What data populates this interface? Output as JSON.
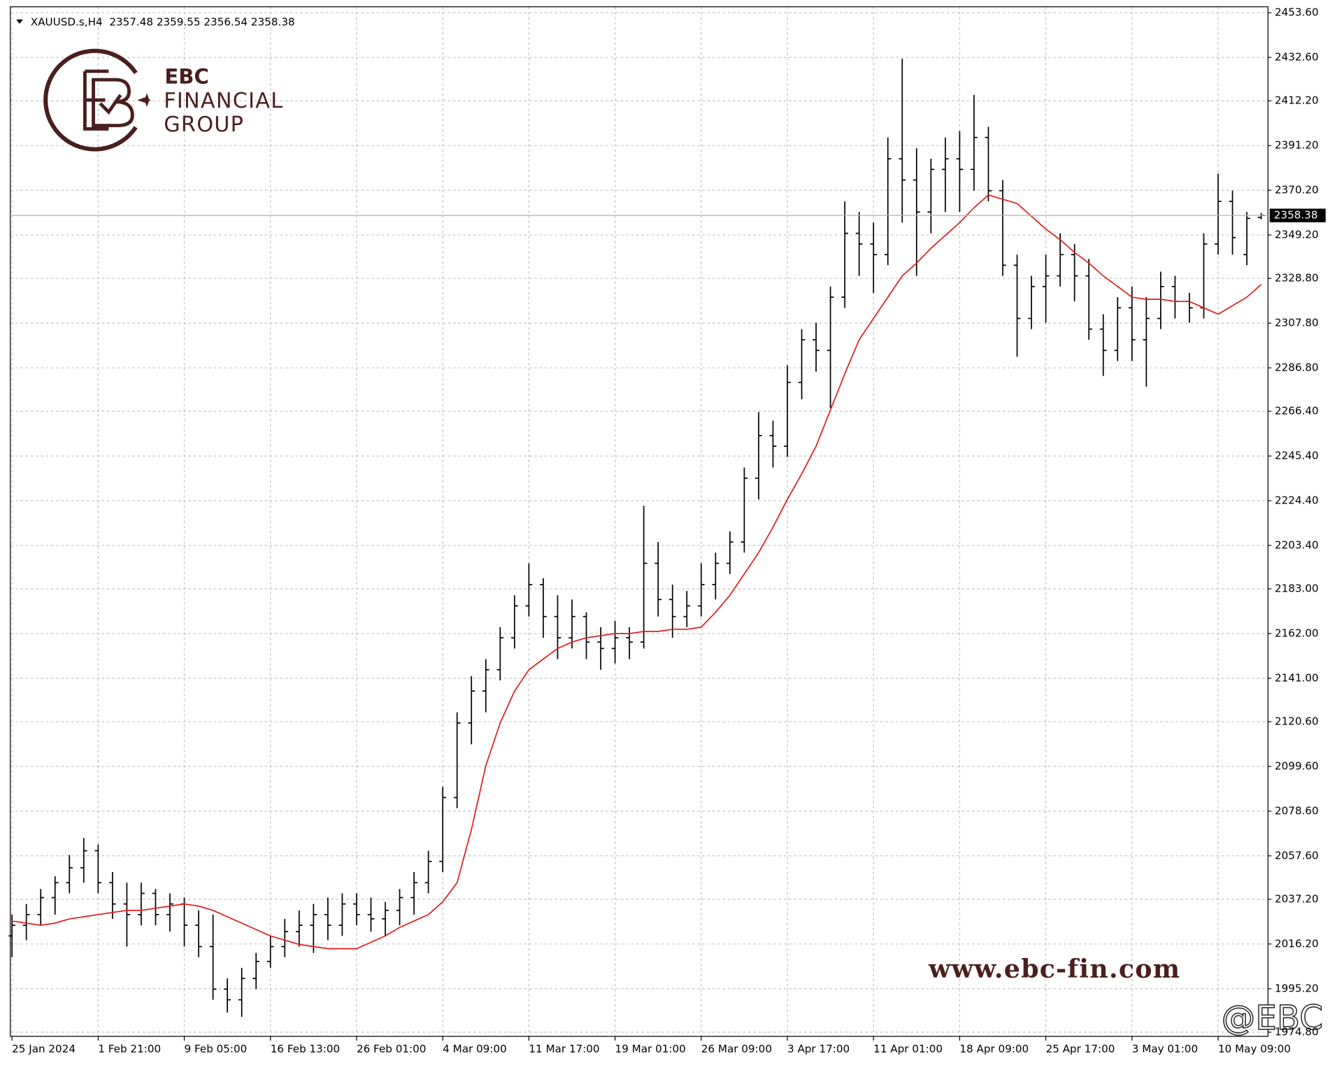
{
  "chart_data": {
    "type": "ohlc",
    "title": "XAUUSD.s,H4",
    "bar_color": "#000000",
    "ma_color": "#e31a1c",
    "grid": true,
    "open": [
      2020,
      2025,
      2030,
      2038,
      2045,
      2052,
      2060,
      2045,
      2035,
      2030,
      2040,
      2030,
      2035,
      2025,
      2015,
      1995,
      1990,
      2000,
      2008,
      2015,
      2022,
      2025,
      2030,
      2025,
      2035,
      2030,
      2028,
      2032,
      2038,
      2045,
      2055,
      2085,
      2120,
      2135,
      2145,
      2160,
      2175,
      2185,
      2170,
      2160,
      2170,
      2158,
      2155,
      2160,
      2158,
      2195,
      2178,
      2170,
      2175,
      2185,
      2195,
      2205,
      2235,
      2255,
      2250,
      2280,
      2300,
      2295,
      2320,
      2350,
      2345,
      2340,
      2385,
      2375,
      2360,
      2380,
      2385,
      2380,
      2395,
      2370,
      2335,
      2310,
      2325,
      2330,
      2340,
      2330,
      2305,
      2295,
      2315,
      2300,
      2310,
      2325,
      2318,
      2315,
      2345,
      2365,
      2340,
      2357.48
    ],
    "high": [
      2030,
      2035,
      2042,
      2048,
      2058,
      2066,
      2063,
      2050,
      2045,
      2045,
      2042,
      2040,
      2038,
      2032,
      2030,
      2000,
      2005,
      2012,
      2020,
      2028,
      2032,
      2035,
      2038,
      2040,
      2040,
      2038,
      2036,
      2042,
      2050,
      2060,
      2090,
      2125,
      2142,
      2150,
      2165,
      2180,
      2195,
      2188,
      2180,
      2178,
      2172,
      2165,
      2168,
      2165,
      2222,
      2205,
      2185,
      2182,
      2195,
      2200,
      2210,
      2240,
      2266,
      2262,
      2288,
      2305,
      2308,
      2325,
      2365,
      2360,
      2355,
      2395,
      2432,
      2390,
      2385,
      2395,
      2398,
      2415,
      2400,
      2375,
      2340,
      2330,
      2340,
      2350,
      2345,
      2338,
      2312,
      2320,
      2325,
      2320,
      2332,
      2330,
      2322,
      2350,
      2378,
      2370,
      2360,
      2359.55
    ],
    "low": [
      2010,
      2018,
      2025,
      2030,
      2040,
      2045,
      2040,
      2028,
      2015,
      2025,
      2025,
      2022,
      2015,
      2010,
      1990,
      1984,
      1982,
      1995,
      2005,
      2010,
      2015,
      2012,
      2018,
      2020,
      2025,
      2022,
      2020,
      2025,
      2030,
      2040,
      2050,
      2080,
      2110,
      2125,
      2140,
      2155,
      2170,
      2160,
      2150,
      2155,
      2150,
      2145,
      2148,
      2150,
      2155,
      2170,
      2160,
      2165,
      2170,
      2178,
      2190,
      2200,
      2225,
      2240,
      2245,
      2272,
      2285,
      2268,
      2315,
      2330,
      2322,
      2335,
      2355,
      2330,
      2350,
      2360,
      2360,
      2370,
      2365,
      2330,
      2292,
      2305,
      2308,
      2325,
      2318,
      2300,
      2283,
      2290,
      2290,
      2278,
      2305,
      2310,
      2308,
      2310,
      2340,
      2340,
      2335,
      2356.54
    ],
    "close": [
      2025,
      2030,
      2038,
      2045,
      2052,
      2060,
      2045,
      2035,
      2030,
      2040,
      2030,
      2035,
      2025,
      2015,
      1995,
      1990,
      2000,
      2008,
      2015,
      2022,
      2025,
      2030,
      2025,
      2035,
      2030,
      2028,
      2032,
      2038,
      2045,
      2055,
      2085,
      2120,
      2135,
      2145,
      2160,
      2175,
      2185,
      2170,
      2160,
      2170,
      2158,
      2155,
      2160,
      2158,
      2195,
      2178,
      2170,
      2175,
      2185,
      2195,
      2205,
      2235,
      2255,
      2250,
      2280,
      2300,
      2295,
      2320,
      2350,
      2345,
      2340,
      2385,
      2375,
      2360,
      2380,
      2385,
      2380,
      2395,
      2370,
      2335,
      2310,
      2325,
      2330,
      2340,
      2330,
      2305,
      2295,
      2315,
      2300,
      2310,
      2325,
      2318,
      2315,
      2345,
      2365,
      2348,
      2357,
      2358.38
    ],
    "ma": [
      2027,
      2026,
      2025,
      2026,
      2028,
      2029,
      2030,
      2031,
      2032,
      2032,
      2033,
      2034,
      2035,
      2034,
      2032,
      2029,
      2026,
      2023,
      2020,
      2018,
      2016,
      2015,
      2014,
      2014,
      2014,
      2017,
      2020,
      2024,
      2027,
      2030,
      2036,
      2045,
      2070,
      2100,
      2120,
      2135,
      2145,
      2150,
      2155,
      2158,
      2160,
      2161,
      2162,
      2162,
      2163,
      2163,
      2164,
      2164,
      2165,
      2172,
      2180,
      2190,
      2200,
      2212,
      2225,
      2237,
      2250,
      2267,
      2284,
      2300,
      2310,
      2320,
      2330,
      2336,
      2343,
      2349,
      2355,
      2362,
      2368,
      2366,
      2364,
      2358,
      2352,
      2347,
      2341,
      2336,
      2330,
      2325,
      2320,
      2319,
      2319,
      2318,
      2318,
      2315,
      2312,
      2316,
      2320,
      2326
    ],
    "xlim": [
      0,
      87
    ],
    "xticks": [
      {
        "value": 0,
        "label": "25 Jan 2024"
      },
      {
        "value": 6,
        "label": "1 Feb 21:00"
      },
      {
        "value": 12,
        "label": "9 Feb 05:00"
      },
      {
        "value": 18,
        "label": "16 Feb 13:00"
      },
      {
        "value": 24,
        "label": "26 Feb 01:00"
      },
      {
        "value": 30,
        "label": "4 Mar 09:00"
      },
      {
        "value": 36,
        "label": "11 Mar 17:00"
      },
      {
        "value": 42,
        "label": "19 Mar 01:00"
      },
      {
        "value": 48,
        "label": "26 Mar 09:00"
      },
      {
        "value": 54,
        "label": "3 Apr 17:00"
      },
      {
        "value": 60,
        "label": "11 Apr 01:00"
      },
      {
        "value": 66,
        "label": "18 Apr 09:00"
      },
      {
        "value": 72,
        "label": "25 Apr 17:00"
      },
      {
        "value": 78,
        "label": "3 May 01:00"
      },
      {
        "value": 84,
        "label": "10 May 09:00"
      }
    ],
    "ylim": [
      1974.8,
      2453.6
    ],
    "yticks": [
      {
        "value": 2453.6,
        "label": "2453.60"
      },
      {
        "value": 2432.6,
        "label": "2432.60"
      },
      {
        "value": 2412.2,
        "label": "2412.20"
      },
      {
        "value": 2391.2,
        "label": "2391.20"
      },
      {
        "value": 2370.2,
        "label": "2370.20"
      },
      {
        "value": 2349.2,
        "label": "2349.20"
      },
      {
        "value": 2328.8,
        "label": "2328.80"
      },
      {
        "value": 2307.8,
        "label": "2307.80"
      },
      {
        "value": 2286.8,
        "label": "2286.80"
      },
      {
        "value": 2266.4,
        "label": "2266.40"
      },
      {
        "value": 2245.4,
        "label": "2245.40"
      },
      {
        "value": 2224.4,
        "label": "2224.40"
      },
      {
        "value": 2203.4,
        "label": "2203.40"
      },
      {
        "value": 2183,
        "label": "2183.00"
      },
      {
        "value": 2162,
        "label": "2162.00"
      },
      {
        "value": 2141,
        "label": "2141.00"
      },
      {
        "value": 2120.6,
        "label": "2120.60"
      },
      {
        "value": 2099.6,
        "label": "2099.60"
      },
      {
        "value": 2078.6,
        "label": "2078.60"
      },
      {
        "value": 2057.6,
        "label": "2057.60"
      },
      {
        "value": 2037.2,
        "label": "2037.20"
      },
      {
        "value": 2016.2,
        "label": "2016.20"
      },
      {
        "value": 1995.2,
        "label": "1995.20"
      },
      {
        "value": 1974.8,
        "label": "1974.80"
      }
    ]
  },
  "logo": {
    "name": "EBC",
    "line1": "FINANCIAL",
    "line2": "GROUP"
  },
  "watermark": "www.ebc-fin.com",
  "handle": "@EBC"
}
